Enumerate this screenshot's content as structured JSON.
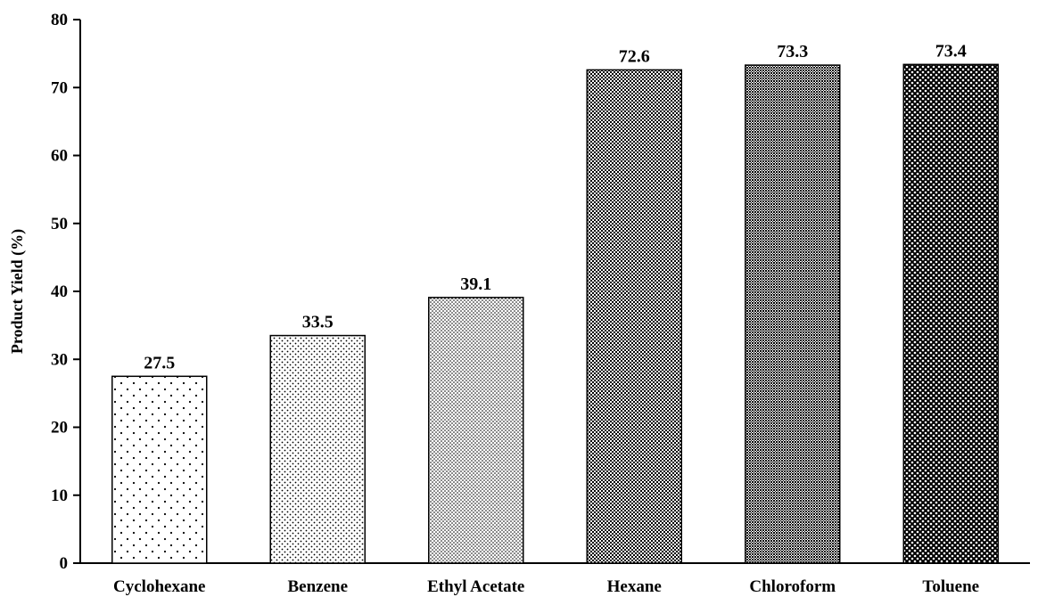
{
  "chart_data": {
    "type": "bar",
    "title": "",
    "xlabel": "",
    "ylabel": "Product Yield (%)",
    "categories": [
      "Cyclohexane",
      "Benzene",
      "Ethyl Acetate",
      "Hexane",
      "Chloroform",
      "Toluene"
    ],
    "values": [
      27.5,
      33.5,
      39.1,
      72.6,
      73.3,
      73.4
    ],
    "data_labels": [
      "27.5",
      "33.5",
      "39.1",
      "72.6",
      "73.3",
      "73.4"
    ],
    "ylim": [
      0,
      80
    ],
    "yticks": [
      0,
      10,
      20,
      30,
      40,
      50,
      60,
      70,
      80
    ],
    "grid": false,
    "legend": "none",
    "fill_patterns": [
      "sparse-dots",
      "fine-dots",
      "dense-dots",
      "checker",
      "checker-dense",
      "diamond-grid"
    ]
  }
}
